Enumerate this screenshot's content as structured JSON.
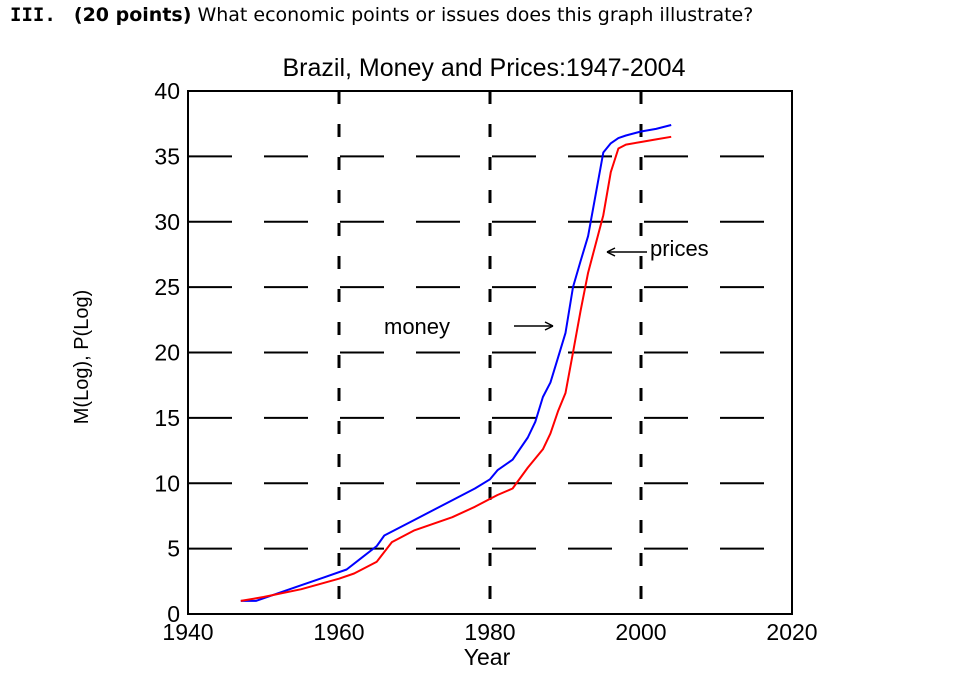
{
  "question": {
    "number": "III.",
    "points": "(20 points)",
    "text": "What economic points or issues does this graph illustrate?"
  },
  "chart_data": {
    "type": "line",
    "title": "Brazil, Money and Prices:1947-2004",
    "xlabel": "Year",
    "ylabel": "M(Log), P(Log)",
    "xlim": [
      1940,
      2020
    ],
    "ylim": [
      0,
      40
    ],
    "xticks": [
      1940,
      1960,
      1980,
      2000,
      2020
    ],
    "yticks": [
      0,
      5,
      10,
      15,
      20,
      25,
      30,
      35,
      40
    ],
    "grid": true,
    "grid_style": "dashed",
    "series": [
      {
        "name": "money",
        "color": "#0000ff",
        "x": [
          1947,
          1949,
          1952,
          1955,
          1958,
          1961,
          1963,
          1965,
          1966,
          1970,
          1975,
          1978,
          1980,
          1981,
          1983,
          1985,
          1986,
          1987,
          1988,
          1989,
          1990,
          1991,
          1992,
          1993,
          1994,
          1995,
          1996,
          1997,
          1998,
          2000,
          2002,
          2004
        ],
        "y": [
          1.0,
          1.0,
          1.6,
          2.2,
          2.8,
          3.4,
          4.3,
          5.2,
          6.0,
          7.2,
          8.7,
          9.6,
          10.3,
          11.0,
          11.8,
          13.5,
          14.7,
          16.6,
          17.7,
          19.6,
          21.5,
          25.0,
          27.0,
          28.9,
          32.1,
          35.3,
          36.0,
          36.4,
          36.6,
          36.9,
          37.1,
          37.4
        ]
      },
      {
        "name": "prices",
        "color": "#ff0000",
        "x": [
          1947,
          1950,
          1955,
          1960,
          1962,
          1965,
          1967,
          1970,
          1975,
          1978,
          1980,
          1981,
          1983,
          1985,
          1987,
          1988,
          1989,
          1990,
          1991,
          1992,
          1993,
          1994,
          1995,
          1996,
          1997,
          1998,
          2000,
          2002,
          2004
        ],
        "y": [
          1.0,
          1.3,
          1.9,
          2.7,
          3.1,
          4.0,
          5.5,
          6.4,
          7.4,
          8.2,
          8.8,
          9.1,
          9.6,
          11.2,
          12.6,
          13.8,
          15.5,
          16.9,
          20.0,
          23.2,
          26.1,
          28.3,
          30.5,
          33.8,
          35.6,
          35.9,
          36.1,
          36.3,
          36.5
        ]
      }
    ],
    "annotations": [
      {
        "text": "money",
        "arrow": "right"
      },
      {
        "text": "prices",
        "arrow": "left"
      }
    ]
  }
}
